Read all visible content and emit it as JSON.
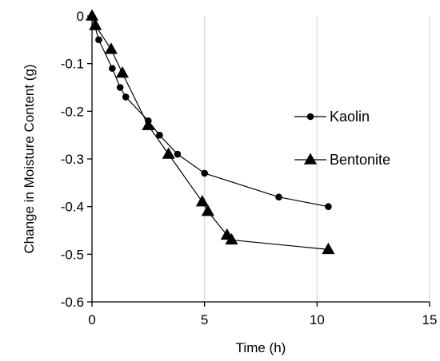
{
  "chart_data": {
    "type": "scatter",
    "title": "",
    "xlabel": "Time (h)",
    "ylabel": "Change in Moisture Content (g)",
    "xlim": [
      0,
      15
    ],
    "ylim": [
      -0.6,
      0
    ],
    "x_ticks": [
      0,
      5,
      10,
      15
    ],
    "x_tick_labels": [
      "0",
      "5",
      "10",
      "15"
    ],
    "y_ticks": [
      0,
      -0.1,
      -0.2,
      -0.3,
      -0.4,
      -0.5,
      -0.6
    ],
    "y_tick_labels": [
      "0",
      "-0.1",
      "-0.2",
      "-0.3",
      "-0.4",
      "-0.5",
      "-0.6"
    ],
    "grid": "vertical",
    "legend_position": "right",
    "series": [
      {
        "name": "Kaolin",
        "marker": "circle",
        "color": "#000000",
        "x": [
          0,
          0.3,
          0.9,
          1.25,
          1.5,
          2.5,
          3.0,
          3.8,
          5.0,
          8.3,
          10.5
        ],
        "y": [
          0,
          -0.05,
          -0.11,
          -0.15,
          -0.17,
          -0.22,
          -0.25,
          -0.29,
          -0.33,
          -0.38,
          -0.4
        ]
      },
      {
        "name": "Bentonite",
        "marker": "triangle",
        "color": "#000000",
        "x": [
          0,
          0.15,
          0.85,
          1.35,
          2.5,
          3.4,
          4.9,
          5.15,
          6.0,
          6.2,
          10.5
        ],
        "y": [
          0,
          -0.02,
          -0.07,
          -0.12,
          -0.23,
          -0.29,
          -0.39,
          -0.41,
          -0.46,
          -0.47,
          -0.49
        ]
      }
    ]
  }
}
